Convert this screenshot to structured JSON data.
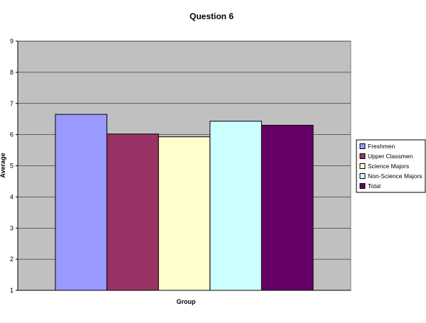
{
  "chart_data": {
    "type": "bar",
    "title": "Question 6",
    "xlabel": "Group",
    "ylabel": "Average",
    "ylim": [
      1,
      9
    ],
    "yticks": [
      1,
      2,
      3,
      4,
      5,
      6,
      7,
      8,
      9
    ],
    "grid": true,
    "legend_position": "right",
    "plot_background": "#C0C0C0",
    "series": [
      {
        "name": "Freshmen",
        "value": 6.65,
        "color": "#9999FF"
      },
      {
        "name": "Upper Classmen",
        "value": 6.02,
        "color": "#993366"
      },
      {
        "name": "Science Majors",
        "value": 5.93,
        "color": "#FFFFCC"
      },
      {
        "name": "Non-Science Majors",
        "value": 6.43,
        "color": "#CCFFFF"
      },
      {
        "name": "Total",
        "value": 6.3,
        "color": "#660066"
      }
    ]
  }
}
